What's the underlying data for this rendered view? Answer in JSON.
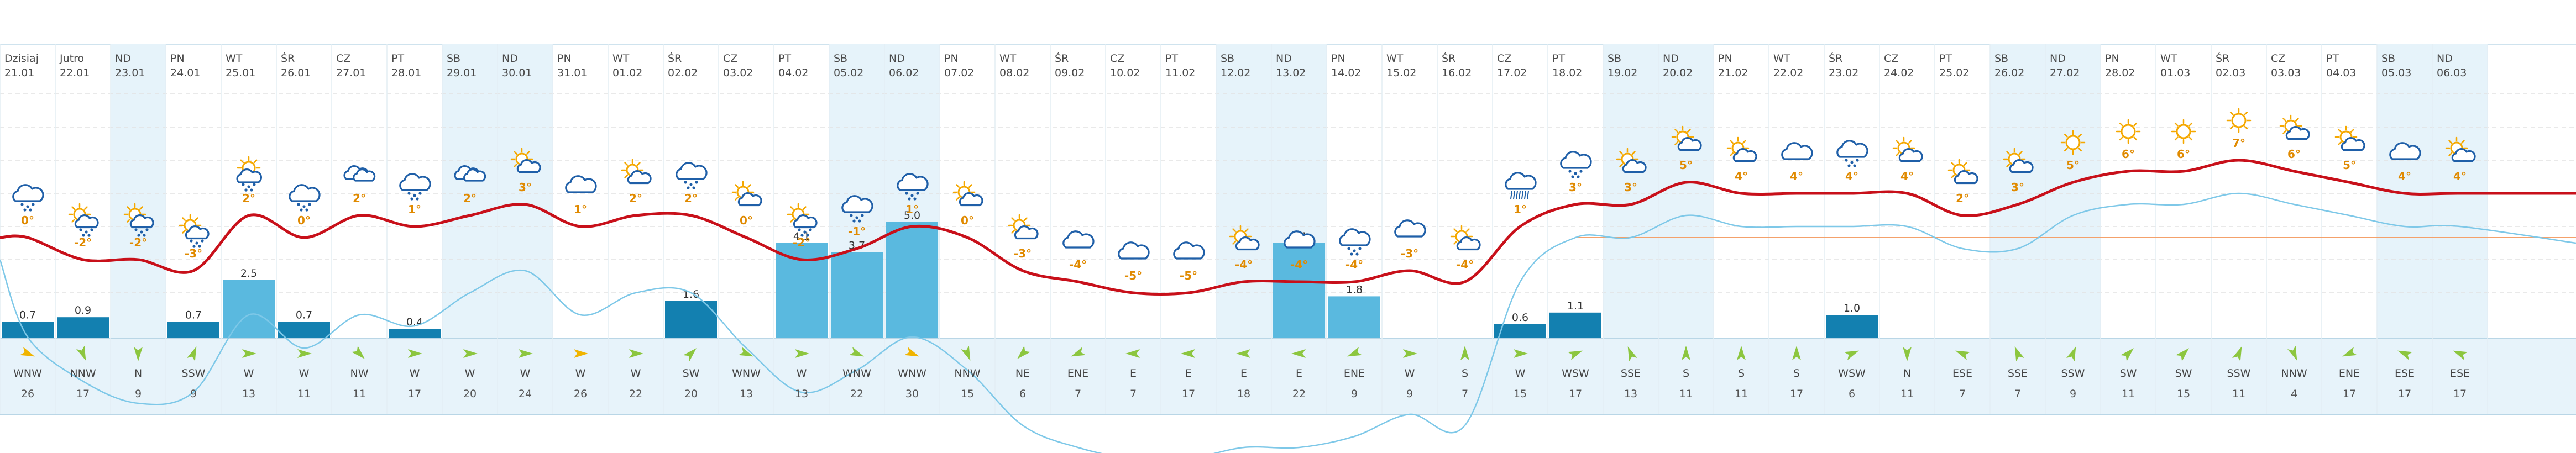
{
  "days": [
    {
      "dow": "Dzisiaj",
      "date": "21.01",
      "weekend": false,
      "icon": "cloud-snow",
      "temp": "0°",
      "precip": 0.7,
      "wind_dir": "WNW",
      "wind_speed": "26",
      "wind_gust": true
    },
    {
      "dow": "Jutro",
      "date": "22.01",
      "weekend": false,
      "icon": "partly-cloudy-snow",
      "temp": "-2°",
      "precip": 0.9,
      "wind_dir": "NNW",
      "wind_speed": "17",
      "wind_gust": false
    },
    {
      "dow": "ND",
      "date": "23.01",
      "weekend": true,
      "icon": "partly-cloudy-snow",
      "temp": "-2°",
      "precip": 0,
      "wind_dir": "N",
      "wind_speed": "9",
      "wind_gust": false
    },
    {
      "dow": "PN",
      "date": "24.01",
      "weekend": false,
      "icon": "partly-cloudy-snow",
      "temp": "-3°",
      "precip": 0.7,
      "wind_dir": "SSW",
      "wind_speed": "9",
      "wind_gust": false
    },
    {
      "dow": "WT",
      "date": "25.01",
      "weekend": false,
      "icon": "sun-cloud-snow",
      "temp": "2°",
      "precip": 2.5,
      "wind_dir": "W",
      "wind_speed": "13",
      "wind_gust": false
    },
    {
      "dow": "ŚR",
      "date": "26.01",
      "weekend": false,
      "icon": "cloud-snow",
      "temp": "0°",
      "precip": 0.7,
      "wind_dir": "W",
      "wind_speed": "11",
      "wind_gust": false
    },
    {
      "dow": "CZ",
      "date": "27.01",
      "weekend": false,
      "icon": "clouds",
      "temp": "2°",
      "precip": 0,
      "wind_dir": "NW",
      "wind_speed": "11",
      "wind_gust": false
    },
    {
      "dow": "PT",
      "date": "28.01",
      "weekend": false,
      "icon": "cloud-snow",
      "temp": "1°",
      "precip": 0.4,
      "wind_dir": "W",
      "wind_speed": "17",
      "wind_gust": false
    },
    {
      "dow": "SB",
      "date": "29.01",
      "weekend": true,
      "icon": "clouds",
      "temp": "2°",
      "precip": 0,
      "wind_dir": "W",
      "wind_speed": "20",
      "wind_gust": false
    },
    {
      "dow": "ND",
      "date": "30.01",
      "weekend": true,
      "icon": "partly-cloudy",
      "temp": "3°",
      "precip": 0,
      "wind_dir": "W",
      "wind_speed": "24",
      "wind_gust": false
    },
    {
      "dow": "PN",
      "date": "31.01",
      "weekend": false,
      "icon": "cloud",
      "temp": "1°",
      "precip": 0,
      "wind_dir": "W",
      "wind_speed": "26",
      "wind_gust": true
    },
    {
      "dow": "WT",
      "date": "01.02",
      "weekend": false,
      "icon": "partly-cloudy",
      "temp": "2°",
      "precip": 0,
      "wind_dir": "W",
      "wind_speed": "22",
      "wind_gust": false
    },
    {
      "dow": "ŚR",
      "date": "02.02",
      "weekend": false,
      "icon": "cloud-snow",
      "temp": "2°",
      "precip": 1.6,
      "wind_dir": "SW",
      "wind_speed": "20",
      "wind_gust": false
    },
    {
      "dow": "CZ",
      "date": "03.02",
      "weekend": false,
      "icon": "partly-cloudy",
      "temp": "0°",
      "precip": 0,
      "wind_dir": "WNW",
      "wind_speed": "13",
      "wind_gust": false
    },
    {
      "dow": "PT",
      "date": "04.02",
      "weekend": false,
      "icon": "partly-cloudy-snow",
      "temp": "-2°",
      "precip": 4.1,
      "wind_dir": "W",
      "wind_speed": "13",
      "wind_gust": false
    },
    {
      "dow": "SB",
      "date": "05.02",
      "weekend": true,
      "icon": "cloud-snow",
      "temp": "-1°",
      "precip": 3.7,
      "wind_dir": "WNW",
      "wind_speed": "22",
      "wind_gust": false
    },
    {
      "dow": "ND",
      "date": "06.02",
      "weekend": true,
      "icon": "cloud-snow",
      "temp": "1°",
      "precip": 5.0,
      "wind_dir": "WNW",
      "wind_speed": "30",
      "wind_gust": true
    },
    {
      "dow": "PN",
      "date": "07.02",
      "weekend": false,
      "icon": "partly-cloudy",
      "temp": "0°",
      "precip": 0,
      "wind_dir": "NNW",
      "wind_speed": "15",
      "wind_gust": false
    },
    {
      "dow": "WT",
      "date": "08.02",
      "weekend": false,
      "icon": "partly-cloudy",
      "temp": "-3°",
      "precip": 0,
      "wind_dir": "NE",
      "wind_speed": "6",
      "wind_gust": false
    },
    {
      "dow": "ŚR",
      "date": "09.02",
      "weekend": false,
      "icon": "cloud",
      "temp": "-4°",
      "precip": 0,
      "wind_dir": "ENE",
      "wind_speed": "7",
      "wind_gust": false
    },
    {
      "dow": "CZ",
      "date": "10.02",
      "weekend": false,
      "icon": "cloud",
      "temp": "-5°",
      "precip": 0,
      "wind_dir": "E",
      "wind_speed": "7",
      "wind_gust": false
    },
    {
      "dow": "PT",
      "date": "11.02",
      "weekend": false,
      "icon": "cloud",
      "temp": "-5°",
      "precip": 0,
      "wind_dir": "E",
      "wind_speed": "17",
      "wind_gust": false
    },
    {
      "dow": "SB",
      "date": "12.02",
      "weekend": true,
      "icon": "partly-cloudy",
      "temp": "-4°",
      "precip": 0,
      "wind_dir": "E",
      "wind_speed": "18",
      "wind_gust": false
    },
    {
      "dow": "ND",
      "date": "13.02",
      "weekend": true,
      "icon": "cloud",
      "temp": "-4°",
      "precip": 4.1,
      "wind_dir": "E",
      "wind_speed": "22",
      "wind_gust": false
    },
    {
      "dow": "PN",
      "date": "14.02",
      "weekend": false,
      "icon": "cloud-snow",
      "temp": "-4°",
      "precip": 1.8,
      "wind_dir": "ENE",
      "wind_speed": "9",
      "wind_gust": false
    },
    {
      "dow": "WT",
      "date": "15.02",
      "weekend": false,
      "icon": "cloud",
      "temp": "-3°",
      "precip": 0,
      "wind_dir": "W",
      "wind_speed": "9",
      "wind_gust": false
    },
    {
      "dow": "ŚR",
      "date": "16.02",
      "weekend": false,
      "icon": "partly-cloudy",
      "temp": "-4°",
      "precip": 0,
      "wind_dir": "S",
      "wind_speed": "7",
      "wind_gust": false
    },
    {
      "dow": "CZ",
      "date": "17.02",
      "weekend": false,
      "icon": "cloud-rain",
      "temp": "1°",
      "precip": 0.6,
      "wind_dir": "W",
      "wind_speed": "15",
      "wind_gust": false
    },
    {
      "dow": "PT",
      "date": "18.02",
      "weekend": false,
      "icon": "cloud-snow",
      "temp": "3°",
      "precip": 1.1,
      "wind_dir": "WSW",
      "wind_speed": "17",
      "wind_gust": false
    },
    {
      "dow": "SB",
      "date": "19.02",
      "weekend": true,
      "icon": "partly-cloudy",
      "temp": "3°",
      "precip": 0,
      "wind_dir": "SSE",
      "wind_speed": "13",
      "wind_gust": false
    },
    {
      "dow": "ND",
      "date": "20.02",
      "weekend": true,
      "icon": "partly-cloudy",
      "temp": "5°",
      "precip": 0,
      "wind_dir": "S",
      "wind_speed": "11",
      "wind_gust": false
    },
    {
      "dow": "PN",
      "date": "21.02",
      "weekend": false,
      "icon": "partly-cloudy",
      "temp": "4°",
      "precip": 0,
      "wind_dir": "S",
      "wind_speed": "11",
      "wind_gust": false
    },
    {
      "dow": "WT",
      "date": "22.02",
      "weekend": false,
      "icon": "cloud",
      "temp": "4°",
      "precip": 0,
      "wind_dir": "S",
      "wind_speed": "17",
      "wind_gust": false
    },
    {
      "dow": "ŚR",
      "date": "23.02",
      "weekend": false,
      "icon": "cloud-snow",
      "temp": "4°",
      "precip": 1.0,
      "wind_dir": "WSW",
      "wind_speed": "6",
      "wind_gust": false
    },
    {
      "dow": "CZ",
      "date": "24.02",
      "weekend": false,
      "icon": "partly-cloudy",
      "temp": "4°",
      "precip": 0,
      "wind_dir": "N",
      "wind_speed": "11",
      "wind_gust": false
    },
    {
      "dow": "PT",
      "date": "25.02",
      "weekend": false,
      "icon": "partly-cloudy",
      "temp": "2°",
      "precip": 0,
      "wind_dir": "ESE",
      "wind_speed": "7",
      "wind_gust": false
    },
    {
      "dow": "SB",
      "date": "26.02",
      "weekend": true,
      "icon": "partly-cloudy",
      "temp": "3°",
      "precip": 0,
      "wind_dir": "SSE",
      "wind_speed": "7",
      "wind_gust": false
    },
    {
      "dow": "ND",
      "date": "27.02",
      "weekend": true,
      "icon": "sun",
      "temp": "5°",
      "precip": 0,
      "wind_dir": "SSW",
      "wind_speed": "9",
      "wind_gust": false
    },
    {
      "dow": "PN",
      "date": "28.02",
      "weekend": false,
      "icon": "sun",
      "temp": "6°",
      "precip": 0,
      "wind_dir": "SW",
      "wind_speed": "11",
      "wind_gust": false
    },
    {
      "dow": "WT",
      "date": "01.03",
      "weekend": false,
      "icon": "sun",
      "temp": "6°",
      "precip": 0,
      "wind_dir": "SW",
      "wind_speed": "15",
      "wind_gust": false
    },
    {
      "dow": "ŚR",
      "date": "02.03",
      "weekend": false,
      "icon": "sun",
      "temp": "7°",
      "precip": 0,
      "wind_dir": "SSW",
      "wind_speed": "11",
      "wind_gust": false
    },
    {
      "dow": "CZ",
      "date": "03.03",
      "weekend": false,
      "icon": "partly-cloudy",
      "temp": "6°",
      "precip": 0,
      "wind_dir": "NNW",
      "wind_speed": "4",
      "wind_gust": false
    },
    {
      "dow": "PT",
      "date": "04.03",
      "weekend": false,
      "icon": "partly-cloudy",
      "temp": "5°",
      "precip": 0,
      "wind_dir": "ENE",
      "wind_speed": "17",
      "wind_gust": false
    },
    {
      "dow": "SB",
      "date": "05.03",
      "weekend": true,
      "icon": "cloud",
      "temp": "4°",
      "precip": 0,
      "wind_dir": "ESE",
      "wind_speed": "17",
      "wind_gust": false
    },
    {
      "dow": "ND",
      "date": "06.03",
      "weekend": true,
      "icon": "partly-cloudy",
      "temp": "4°",
      "precip": 0,
      "wind_dir": "ESE",
      "wind_speed": "17",
      "wind_gust": false
    }
  ],
  "colors": {
    "weekend_bg": "#e6f3fa",
    "temp_line": "#c8101a",
    "curve_blue": "#7ec8e8",
    "bar_light": "#5ab9df",
    "bar_dark": "#1380b0",
    "wind_bg": "#e7f3fa",
    "arrow_green": "#8cc63f",
    "arrow_yellow": "#f0b400",
    "temp_text": "#e08a00",
    "icon_blue": "#1f5fa8",
    "sun": "#f5a800"
  }
}
